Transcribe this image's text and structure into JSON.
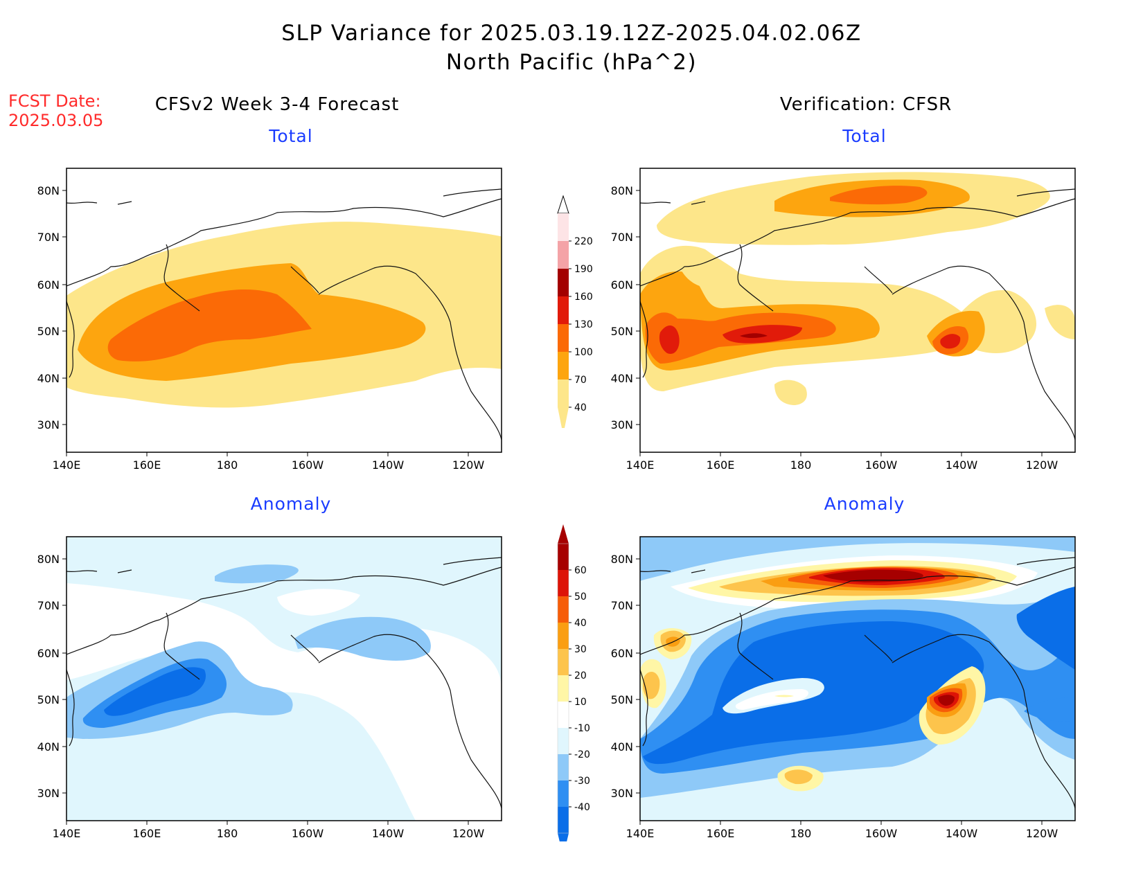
{
  "header": {
    "title_line1": "SLP Variance for 2025.03.19.12Z-2025.04.02.06Z",
    "title_line2": "North Pacific (hPa^2)",
    "fcst_label": "FCST Date:",
    "fcst_date": "2025.03.05",
    "left_column": "CFSv2 Week 3-4 Forecast",
    "right_column": "Verification: CFSR"
  },
  "axes": {
    "lat_ticks": [
      "80N",
      "70N",
      "60N",
      "50N",
      "40N",
      "30N"
    ],
    "lon_ticks": [
      "140E",
      "160E",
      "180",
      "160W",
      "140W",
      "120W"
    ]
  },
  "panels": [
    {
      "id": "fcst-total",
      "title": "Total"
    },
    {
      "id": "verif-total",
      "title": "Total"
    },
    {
      "id": "fcst-anomaly",
      "title": "Anomaly"
    },
    {
      "id": "verif-anomaly",
      "title": "Anomaly"
    }
  ],
  "colorbars": {
    "total": {
      "labels": [
        "40",
        "70",
        "100",
        "130",
        "160",
        "190",
        "220"
      ],
      "colors": [
        "#fde68a",
        "#fda50f",
        "#fb6a06",
        "#e11b0a",
        "#a30000",
        "#f4a3a7",
        "#fde4e6"
      ]
    },
    "anomaly": {
      "labels": [
        "-40",
        "-30",
        "-20",
        "-10",
        "10",
        "20",
        "30",
        "40",
        "50",
        "60"
      ],
      "colors": [
        "#0a6ee8",
        "#2f8ff2",
        "#8ec9f8",
        "#e0f6fd",
        "#ffffff",
        "#fff6a6",
        "#fdc44c",
        "#fa9e12",
        "#f65d08",
        "#dd1307",
        "#a60000"
      ]
    }
  }
}
